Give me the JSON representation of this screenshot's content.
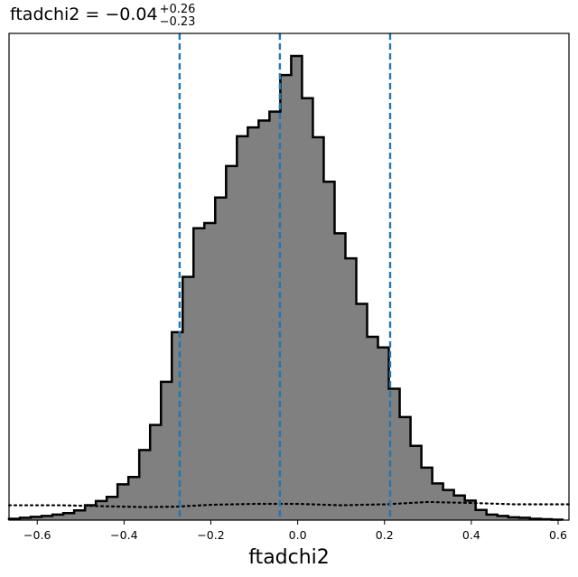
{
  "chart_data": {
    "type": "histogram",
    "title": {
      "prefix": "ftadchi2 = −0.04",
      "upper": "+0.26",
      "lower": "−0.23"
    },
    "xlabel": "ftadchi2",
    "ylabel": "",
    "xlim": [
      -0.665,
      0.625
    ],
    "ylim": [
      0,
      1.0
    ],
    "x_ticks": [
      -0.6,
      -0.4,
      -0.2,
      0.0,
      0.2,
      0.4,
      0.6
    ],
    "x_tick_labels": [
      "−0.6",
      "−0.4",
      "−0.2",
      "0.0",
      "0.2",
      "0.4",
      "0.6"
    ],
    "y_ticks_visible": false,
    "grid": false,
    "bins": {
      "start": -0.665,
      "width": 0.025,
      "counts": [
        0.003,
        0.005,
        0.007,
        0.009,
        0.012,
        0.015,
        0.021,
        0.032,
        0.041,
        0.05,
        0.077,
        0.093,
        0.151,
        0.205,
        0.298,
        0.405,
        0.524,
        0.629,
        0.64,
        0.695,
        0.763,
        0.827,
        0.846,
        0.861,
        0.88,
        0.959,
        1.0,
        0.909,
        0.825,
        0.729,
        0.618,
        0.564,
        0.466,
        0.395,
        0.372,
        0.283,
        0.222,
        0.16,
        0.113,
        0.079,
        0.065,
        0.053,
        0.042,
        0.022,
        0.012,
        0.009,
        0.006,
        0.005,
        0.003,
        0.002,
        0.001
      ]
    },
    "fill_color": "#808080",
    "edge_color": "#000000",
    "reference_lines": {
      "style": "dashed",
      "color": "#1f77b4",
      "x": [
        -0.272,
        -0.041,
        0.213
      ]
    },
    "dotted_curve": {
      "style": "dotted",
      "color": "#000000",
      "x": [
        -0.665,
        -0.55,
        -0.45,
        -0.35,
        -0.28,
        -0.2,
        -0.1,
        0.0,
        0.1,
        0.2,
        0.3,
        0.4,
        0.5,
        0.625
      ],
      "y": [
        0.032,
        0.032,
        0.03,
        0.028,
        0.029,
        0.033,
        0.035,
        0.035,
        0.032,
        0.034,
        0.039,
        0.037,
        0.034,
        0.034
      ]
    }
  }
}
